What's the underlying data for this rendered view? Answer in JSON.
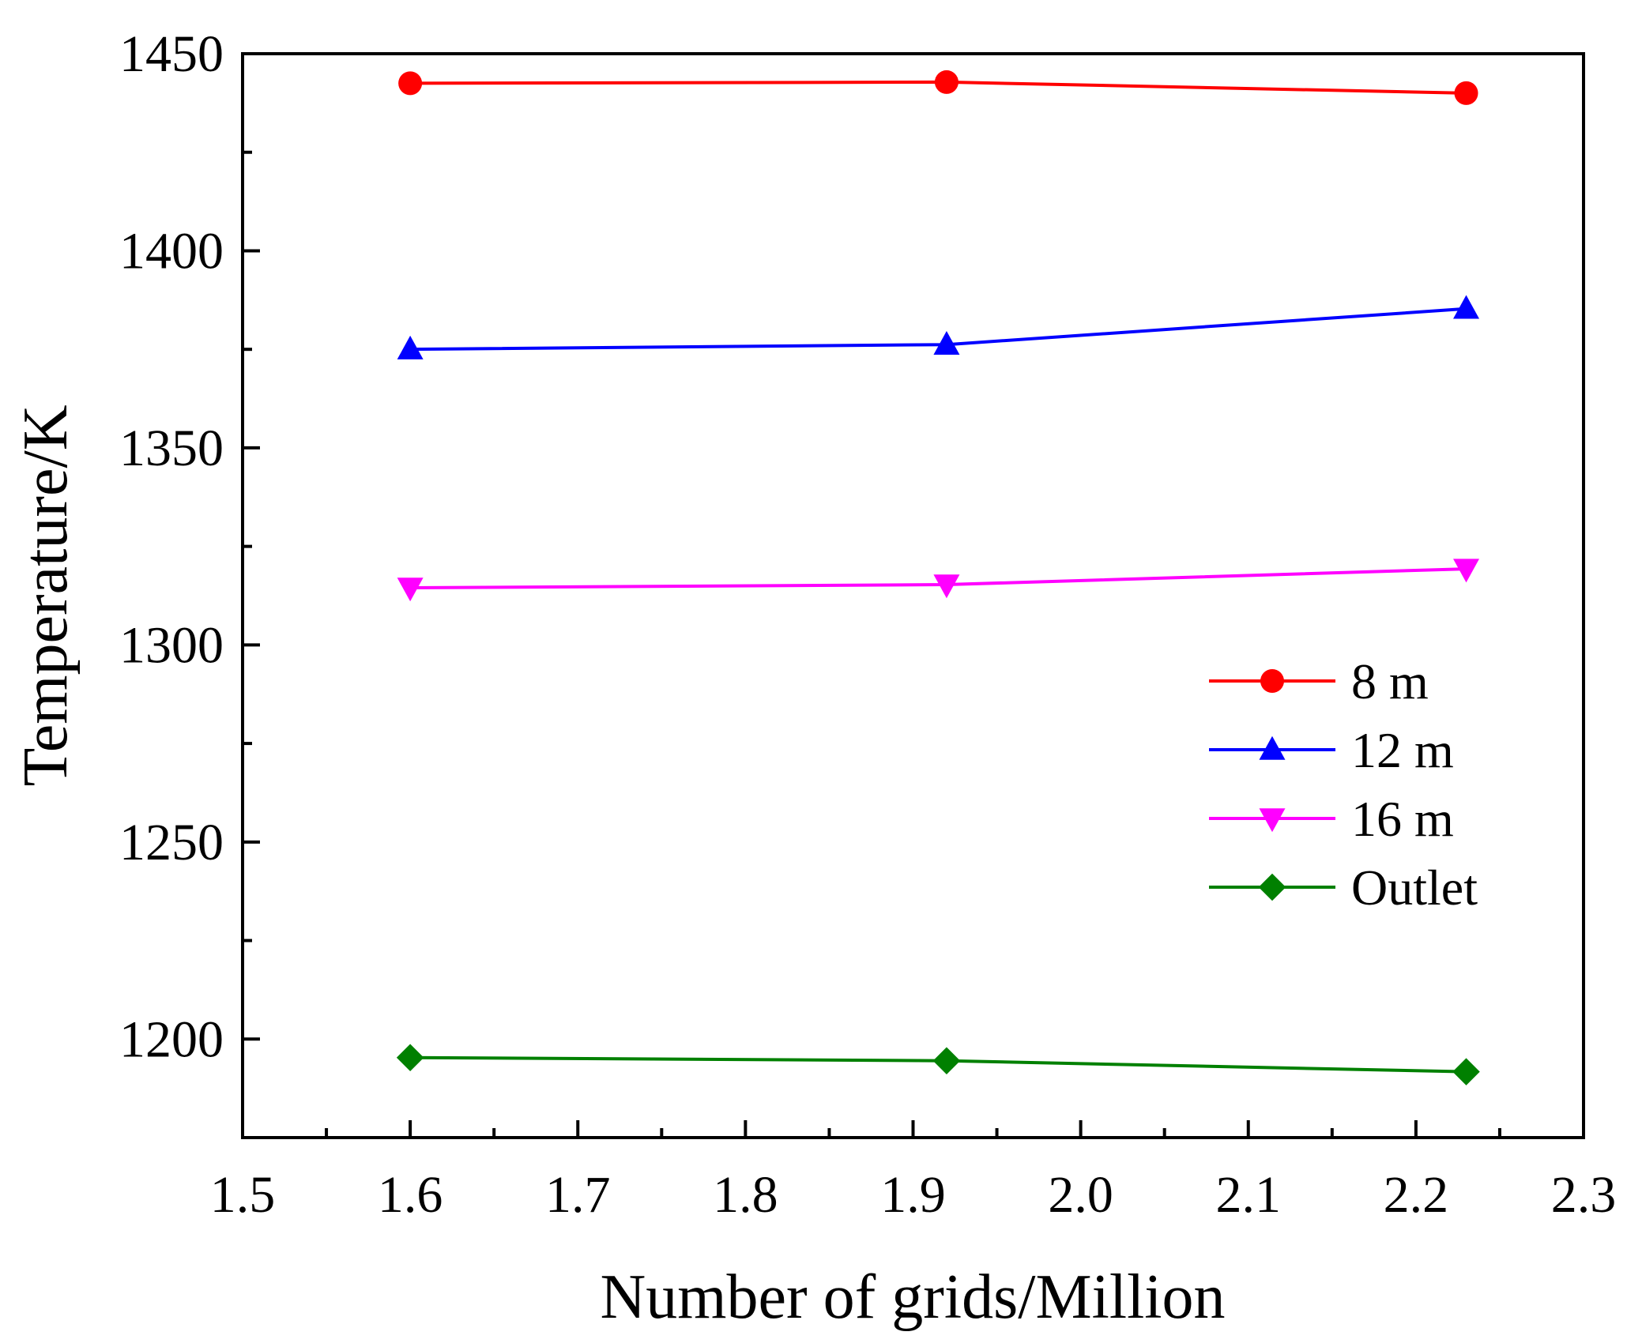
{
  "chart_data": {
    "type": "line",
    "title": "",
    "xlabel": "Number of grids/Million",
    "ylabel": "Temperature/K",
    "xlim": [
      1.5,
      2.3
    ],
    "ylim": [
      1175,
      1450
    ],
    "x_ticks": [
      1.5,
      1.6,
      1.7,
      1.8,
      1.9,
      2.0,
      2.1,
      2.2,
      2.3
    ],
    "x_tick_labels": [
      "1.5",
      "1.6",
      "1.7",
      "1.8",
      "1.9",
      "2.0",
      "2.1",
      "2.2",
      "2.3"
    ],
    "y_ticks": [
      1200,
      1250,
      1300,
      1350,
      1400,
      1450
    ],
    "y_tick_labels": [
      "1200",
      "1250",
      "1300",
      "1350",
      "1400",
      "1450"
    ],
    "x_minor_step": 0.05,
    "y_minor_step": 25,
    "grid": false,
    "legend_position": "right-middle",
    "x": [
      1.6,
      1.92,
      2.23
    ],
    "series": [
      {
        "name": "8 m",
        "color": "#ff0000",
        "marker": "circle",
        "values": [
          1442.5,
          1442.8,
          1440.0
        ]
      },
      {
        "name": "12 m",
        "color": "#0000ff",
        "marker": "triangle-up",
        "values": [
          1375.0,
          1376.2,
          1385.3
        ]
      },
      {
        "name": "16 m",
        "color": "#ff00ff",
        "marker": "triangle-down",
        "values": [
          1314.5,
          1315.3,
          1319.3
        ]
      },
      {
        "name": "Outlet",
        "color": "#008000",
        "marker": "diamond",
        "values": [
          1195.3,
          1194.5,
          1191.7
        ]
      }
    ]
  }
}
